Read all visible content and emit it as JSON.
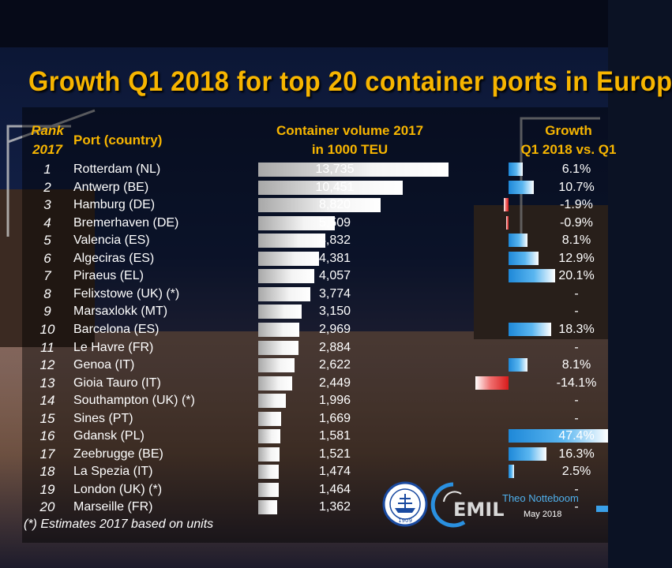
{
  "title": "Growth Q1 2018 for top 20 container ports in Europ",
  "headers": {
    "rank": [
      "Rank",
      "2017"
    ],
    "port": "Port (country)",
    "volume": [
      "Container volume 2017",
      "in 1000 TEU"
    ],
    "growth": [
      "Growth",
      "Q1 2018 vs. Q1"
    ]
  },
  "footnote": "(*) Estimates 2017 based on units",
  "author": "Theo Notteboom",
  "date": "May 2018",
  "logo_texts": [
    "1909",
    "EMIL"
  ],
  "colors": {
    "title": "#f7b500",
    "positive": "#1e88d8",
    "negative": "#d81b1b",
    "volume_bar": "#dcdcdc"
  },
  "chart_data": {
    "type": "table",
    "columns": [
      "Rank 2017",
      "Port (country)",
      "Container volume 2017 in 1000 TEU",
      "Growth Q1 2018 vs. Q1"
    ],
    "rows": [
      {
        "rank": "1",
        "port": "Rotterdam (NL)",
        "volume": 13735,
        "volume_label": "13,735",
        "growth": 6.1,
        "growth_label": "6.1%"
      },
      {
        "rank": "2",
        "port": "Antwerp (BE)",
        "volume": 10451,
        "volume_label": "10,451",
        "growth": 10.7,
        "growth_label": "10.7%"
      },
      {
        "rank": "3",
        "port": "Hamburg (DE)",
        "volume": 8820,
        "volume_label": "8,820",
        "growth": -1.9,
        "growth_label": "-1.9%"
      },
      {
        "rank": "4",
        "port": "Bremerhaven (DE)",
        "volume": 5509,
        "volume_label": "5,509",
        "growth": -0.9,
        "growth_label": "-0.9%"
      },
      {
        "rank": "5",
        "port": "Valencia (ES)",
        "volume": 4832,
        "volume_label": "4,832",
        "growth": 8.1,
        "growth_label": "8.1%"
      },
      {
        "rank": "6",
        "port": "Algeciras (ES)",
        "volume": 4381,
        "volume_label": "4,381",
        "growth": 12.9,
        "growth_label": "12.9%"
      },
      {
        "rank": "7",
        "port": "Piraeus (EL)",
        "volume": 4057,
        "volume_label": "4,057",
        "growth": 20.1,
        "growth_label": "20.1%"
      },
      {
        "rank": "8",
        "port": "Felixstowe (UK) (*)",
        "volume": 3774,
        "volume_label": "3,774",
        "growth": null,
        "growth_label": "-"
      },
      {
        "rank": "9",
        "port": "Marsaxlokk (MT)",
        "volume": 3150,
        "volume_label": "3,150",
        "growth": null,
        "growth_label": "-"
      },
      {
        "rank": "10",
        "port": "Barcelona (ES)",
        "volume": 2969,
        "volume_label": "2,969",
        "growth": 18.3,
        "growth_label": "18.3%"
      },
      {
        "rank": "11",
        "port": "Le Havre (FR)",
        "volume": 2884,
        "volume_label": "2,884",
        "growth": null,
        "growth_label": "-"
      },
      {
        "rank": "12",
        "port": "Genoa (IT)",
        "volume": 2622,
        "volume_label": "2,622",
        "growth": 8.1,
        "growth_label": "8.1%"
      },
      {
        "rank": "13",
        "port": "Gioia Tauro (IT)",
        "volume": 2449,
        "volume_label": "2,449",
        "growth": -14.1,
        "growth_label": "-14.1%"
      },
      {
        "rank": "14",
        "port": "Southampton (UK) (*)",
        "volume": 1996,
        "volume_label": "1,996",
        "growth": null,
        "growth_label": "-"
      },
      {
        "rank": "15",
        "port": "Sines (PT)",
        "volume": 1669,
        "volume_label": "1,669",
        "growth": null,
        "growth_label": "-"
      },
      {
        "rank": "16",
        "port": "Gdansk (PL)",
        "volume": 1581,
        "volume_label": "1,581",
        "growth": 47.4,
        "growth_label": "47.4%"
      },
      {
        "rank": "17",
        "port": "Zeebrugge (BE)",
        "volume": 1521,
        "volume_label": "1,521",
        "growth": 16.3,
        "growth_label": "16.3%"
      },
      {
        "rank": "18",
        "port": "La Spezia (IT)",
        "volume": 1474,
        "volume_label": "1,474",
        "growth": 2.5,
        "growth_label": "2.5%"
      },
      {
        "rank": "19",
        "port": "London (UK) (*)",
        "volume": 1464,
        "volume_label": "1,464",
        "growth": null,
        "growth_label": "-"
      },
      {
        "rank": "20",
        "port": "Marseille (FR)",
        "volume": 1362,
        "volume_label": "1,362",
        "growth": null,
        "growth_label": "-"
      }
    ]
  }
}
